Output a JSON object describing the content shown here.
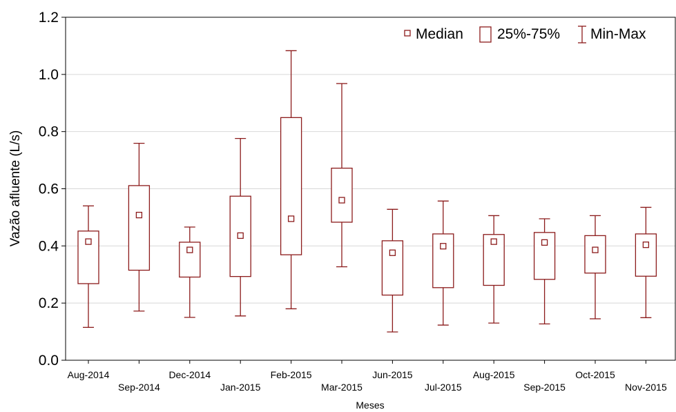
{
  "chart_data": {
    "type": "box",
    "xlabel": "Meses",
    "ylabel": "Vazão afluente (L/s)",
    "ylim": [
      0.0,
      1.2
    ],
    "yticks": [
      "0.0",
      "0.2",
      "0.4",
      "0.6",
      "0.8",
      "1.0",
      "1.2"
    ],
    "grid": "horizontal",
    "legend_position": "top-right",
    "legend": [
      "Median",
      "25%-75%",
      "Min-Max"
    ],
    "colors": {
      "series": "#8b1a1a",
      "grid": "#d8d8d8",
      "axis": "#000000"
    },
    "categories": [
      "Aug-2014",
      "Sep-2014",
      "Dec-2014",
      "Jan-2015",
      "Feb-2015",
      "Mar-2015",
      "Jun-2015",
      "Jul-2015",
      "Aug-2015",
      "Sep-2015",
      "Oct-2015",
      "Nov-2015"
    ],
    "boxes": [
      {
        "min": 0.115,
        "q1": 0.268,
        "median": 0.415,
        "q3": 0.452,
        "max": 0.54
      },
      {
        "min": 0.172,
        "q1": 0.315,
        "median": 0.508,
        "q3": 0.611,
        "max": 0.759
      },
      {
        "min": 0.15,
        "q1": 0.291,
        "median": 0.386,
        "q3": 0.413,
        "max": 0.466
      },
      {
        "min": 0.155,
        "q1": 0.293,
        "median": 0.436,
        "q3": 0.574,
        "max": 0.776
      },
      {
        "min": 0.18,
        "q1": 0.369,
        "median": 0.495,
        "q3": 0.849,
        "max": 1.083
      },
      {
        "min": 0.327,
        "q1": 0.483,
        "median": 0.56,
        "q3": 0.672,
        "max": 0.968
      },
      {
        "min": 0.099,
        "q1": 0.228,
        "median": 0.376,
        "q3": 0.418,
        "max": 0.528
      },
      {
        "min": 0.123,
        "q1": 0.254,
        "median": 0.399,
        "q3": 0.442,
        "max": 0.557
      },
      {
        "min": 0.13,
        "q1": 0.262,
        "median": 0.415,
        "q3": 0.44,
        "max": 0.506
      },
      {
        "min": 0.127,
        "q1": 0.283,
        "median": 0.412,
        "q3": 0.447,
        "max": 0.495
      },
      {
        "min": 0.145,
        "q1": 0.305,
        "median": 0.386,
        "q3": 0.436,
        "max": 0.506
      },
      {
        "min": 0.149,
        "q1": 0.294,
        "median": 0.404,
        "q3": 0.442,
        "max": 0.535
      }
    ]
  }
}
